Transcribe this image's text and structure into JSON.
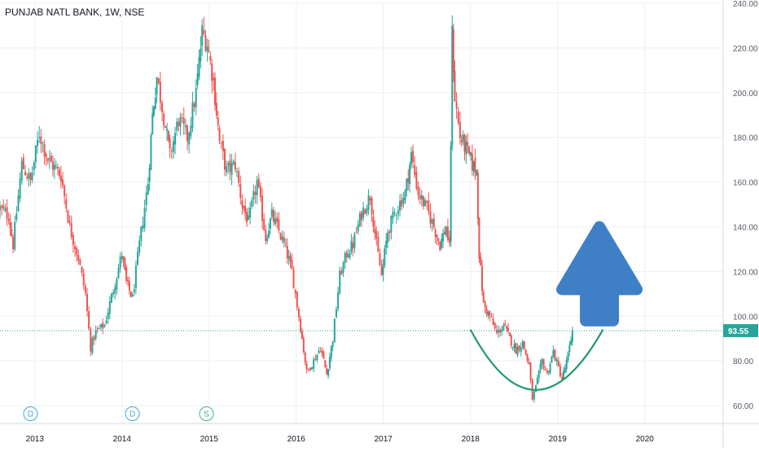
{
  "colors": {
    "up": "#26a69a",
    "down": "#ef5350",
    "grid": "#eceff2",
    "price_line": "#26a69a",
    "arrow": "#3f7fc6",
    "arc": "#1f9a6b",
    "dividend_marker": "#3fa9d6",
    "split_marker": "#3bb58b"
  },
  "chart_data": {
    "type": "candlestick",
    "title": "PUNJAB NATL BANK, 1W, NSE",
    "x_axis": {
      "range": [
        2012.6,
        2020.9
      ],
      "ticks": [
        {
          "value": 2013,
          "label": "2013"
        },
        {
          "value": 2014,
          "label": "2014"
        },
        {
          "value": 2015,
          "label": "2015"
        },
        {
          "value": 2016,
          "label": "2016"
        },
        {
          "value": 2017,
          "label": "2017"
        },
        {
          "value": 2018,
          "label": "2018"
        },
        {
          "value": 2019,
          "label": "2019"
        },
        {
          "value": 2020,
          "label": "2020"
        }
      ]
    },
    "y_axis": {
      "range": [
        52,
        240
      ],
      "ticks": [
        "60.00",
        "80.00",
        "100.00",
        "120.00",
        "140.00",
        "160.00",
        "180.00",
        "200.00",
        "220.00",
        "240.00"
      ],
      "position": "right"
    },
    "grid": true,
    "last_price": "93.55",
    "series_path": [
      [
        2012.6,
        148
      ],
      [
        2012.7,
        145
      ],
      [
        2012.75,
        132
      ],
      [
        2012.85,
        168
      ],
      [
        2012.95,
        160
      ],
      [
        2013.05,
        182
      ],
      [
        2013.15,
        170
      ],
      [
        2013.3,
        163
      ],
      [
        2013.4,
        140
      ],
      [
        2013.5,
        126
      ],
      [
        2013.58,
        110
      ],
      [
        2013.64,
        86
      ],
      [
        2013.7,
        93
      ],
      [
        2013.8,
        96
      ],
      [
        2013.9,
        112
      ],
      [
        2014.0,
        128
      ],
      [
        2014.05,
        115
      ],
      [
        2014.12,
        108
      ],
      [
        2014.2,
        132
      ],
      [
        2014.3,
        160
      ],
      [
        2014.35,
        190
      ],
      [
        2014.4,
        207
      ],
      [
        2014.5,
        185
      ],
      [
        2014.55,
        172
      ],
      [
        2014.65,
        188
      ],
      [
        2014.75,
        180
      ],
      [
        2014.85,
        200
      ],
      [
        2014.92,
        227
      ],
      [
        2014.98,
        222
      ],
      [
        2015.05,
        205
      ],
      [
        2015.12,
        178
      ],
      [
        2015.2,
        165
      ],
      [
        2015.3,
        168
      ],
      [
        2015.38,
        150
      ],
      [
        2015.45,
        142
      ],
      [
        2015.55,
        160
      ],
      [
        2015.65,
        135
      ],
      [
        2015.72,
        145
      ],
      [
        2015.8,
        138
      ],
      [
        2015.88,
        130
      ],
      [
        2015.95,
        120
      ],
      [
        2016.05,
        95
      ],
      [
        2016.12,
        75
      ],
      [
        2016.2,
        80
      ],
      [
        2016.28,
        86
      ],
      [
        2016.35,
        74
      ],
      [
        2016.42,
        90
      ],
      [
        2016.5,
        118
      ],
      [
        2016.58,
        128
      ],
      [
        2016.65,
        132
      ],
      [
        2016.75,
        146
      ],
      [
        2016.85,
        154
      ],
      [
        2016.92,
        132
      ],
      [
        2016.98,
        118
      ],
      [
        2017.05,
        138
      ],
      [
        2017.15,
        148
      ],
      [
        2017.25,
        155
      ],
      [
        2017.32,
        172
      ],
      [
        2017.4,
        155
      ],
      [
        2017.5,
        148
      ],
      [
        2017.58,
        140
      ],
      [
        2017.65,
        132
      ],
      [
        2017.72,
        140
      ],
      [
        2017.76,
        130
      ],
      [
        2017.79,
        226
      ],
      [
        2017.82,
        198
      ],
      [
        2017.88,
        180
      ],
      [
        2017.95,
        175
      ],
      [
        2018.02,
        168
      ],
      [
        2018.07,
        165
      ],
      [
        2018.1,
        128
      ],
      [
        2018.15,
        105
      ],
      [
        2018.22,
        100
      ],
      [
        2018.3,
        92
      ],
      [
        2018.38,
        96
      ],
      [
        2018.45,
        90
      ],
      [
        2018.52,
        85
      ],
      [
        2018.6,
        88
      ],
      [
        2018.67,
        78
      ],
      [
        2018.71,
        63
      ],
      [
        2018.75,
        68
      ],
      [
        2018.82,
        80
      ],
      [
        2018.88,
        74
      ],
      [
        2018.95,
        84
      ],
      [
        2019.05,
        72
      ],
      [
        2019.12,
        82
      ],
      [
        2019.17,
        93.55
      ]
    ],
    "event_markers": [
      {
        "x": 2012.95,
        "letter": "D"
      },
      {
        "x": 2014.12,
        "letter": "D"
      },
      {
        "x": 2014.97,
        "letter": "S"
      }
    ]
  }
}
